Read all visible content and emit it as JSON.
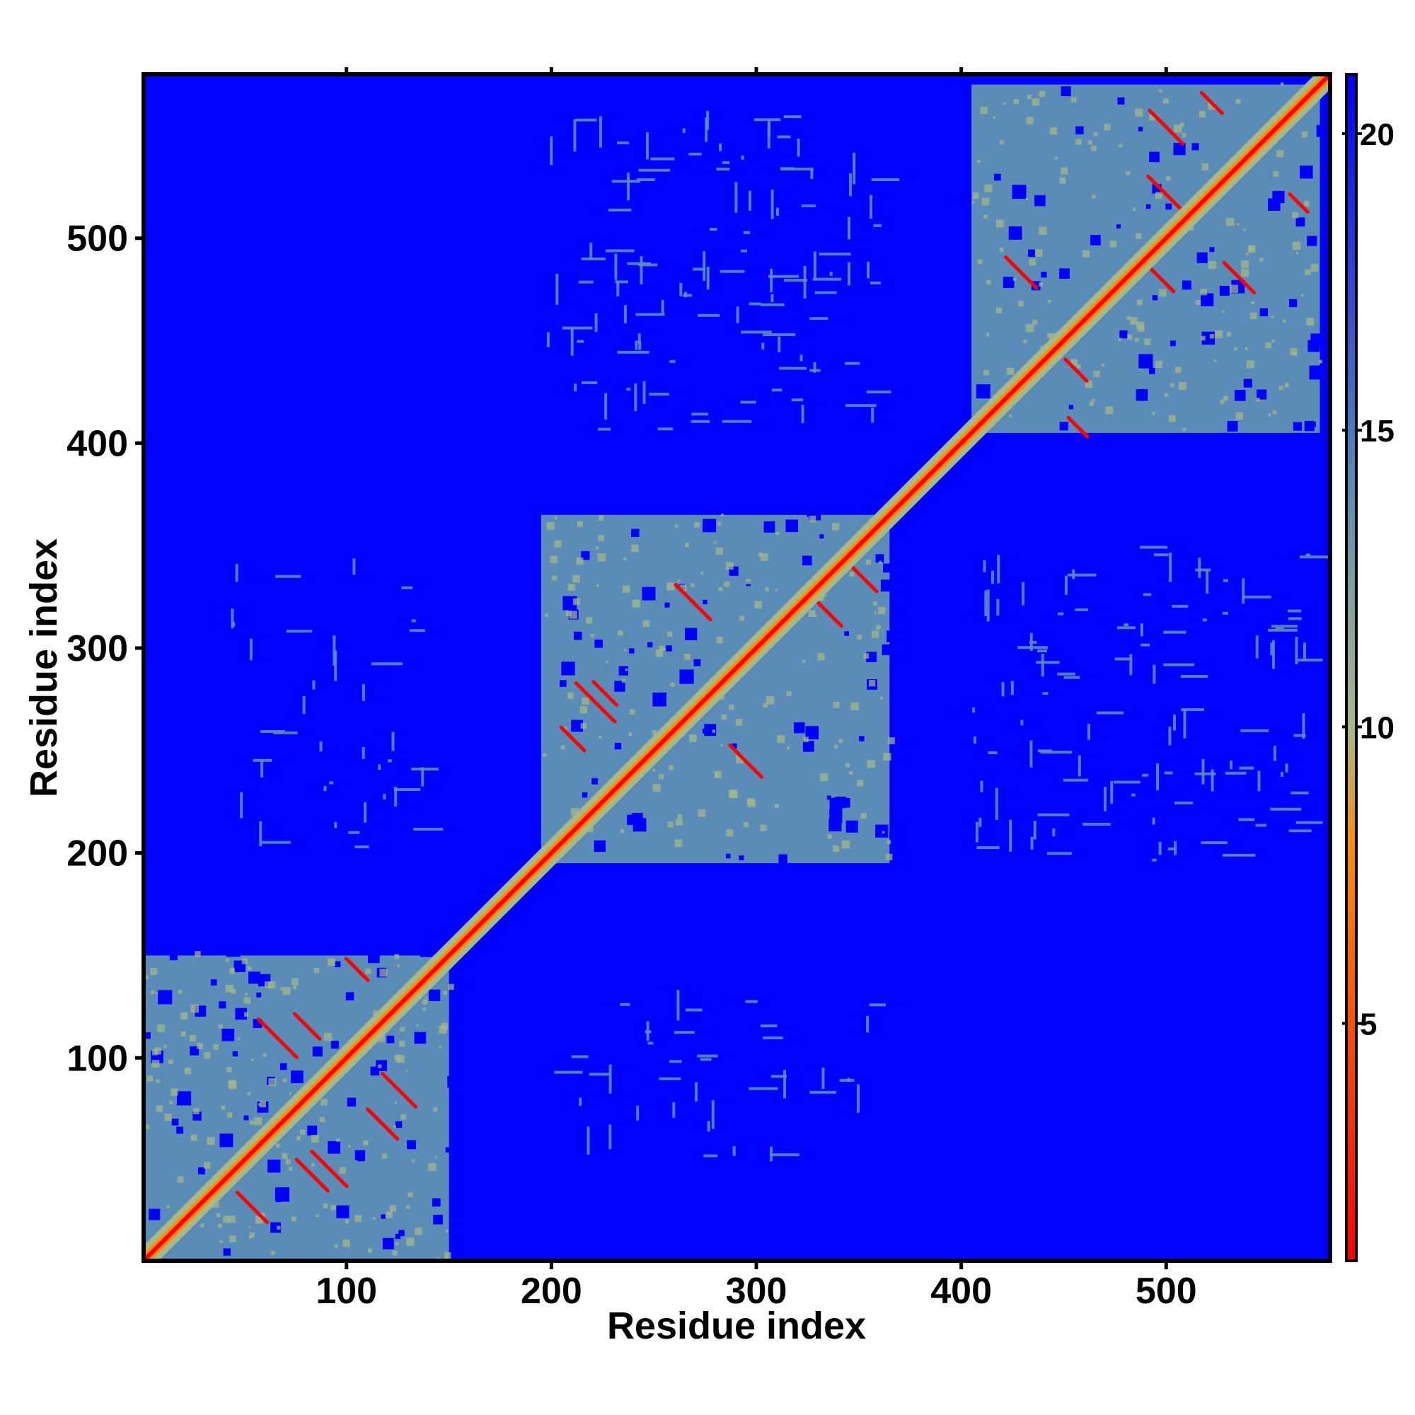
{
  "chart_data": {
    "type": "heatmap",
    "title": "",
    "xlabel": "Residue index",
    "ylabel": "Residue index",
    "xlim": [
      1,
      580
    ],
    "ylim": [
      1,
      580
    ],
    "x_ticks": [
      100,
      200,
      300,
      400,
      500
    ],
    "y_ticks": [
      100,
      200,
      300,
      400,
      500
    ],
    "x_ticks_top": [
      100,
      200,
      300,
      400,
      500
    ],
    "colorbar": {
      "range": [
        1,
        21
      ],
      "ticks": [
        5,
        10,
        15,
        20
      ],
      "colors": [
        "#ff0000",
        "#ff8c00",
        "#a7b986",
        "#5b8cb8",
        "#0000ff"
      ],
      "value_stops": [
        1,
        8,
        10,
        14,
        21
      ]
    },
    "background_value": 21,
    "diagonal_value": 1,
    "domains": [
      {
        "name": "",
        "start": 1,
        "end": 150
      },
      {
        "name": "",
        "start": 195,
        "end": 365
      },
      {
        "name": "",
        "start": 405,
        "end": 575
      }
    ],
    "inter_domain_contacts": [
      {
        "x": [
          195,
          360
        ],
        "y": [
          405,
          560
        ],
        "density": "sparse"
      },
      {
        "x": [
          405,
          570
        ],
        "y": [
          195,
          350
        ],
        "density": "sparse"
      },
      {
        "x": [
          200,
          360
        ],
        "y": [
          45,
          130
        ],
        "density": "very sparse"
      },
      {
        "x": [
          40,
          140
        ],
        "y": [
          200,
          340
        ],
        "density": "very sparse"
      }
    ]
  }
}
